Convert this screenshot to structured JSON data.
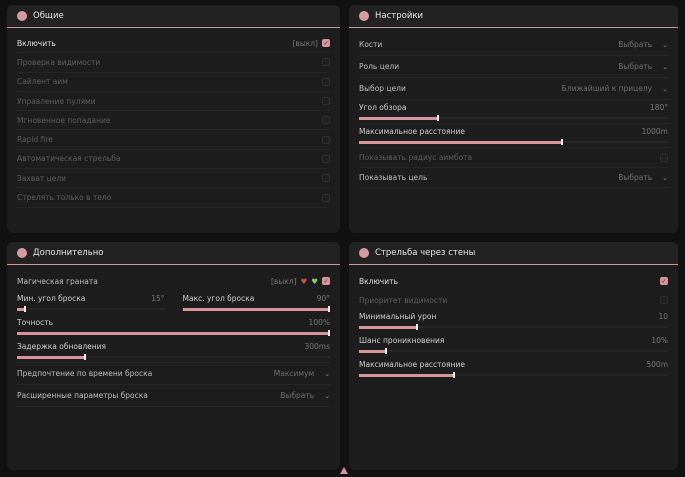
{
  "accent": "#d7959b",
  "general": {
    "title": "Общие",
    "icon": "user-group-icon",
    "items": [
      {
        "label": "Включить",
        "state_text": "[выкл]",
        "checked": true,
        "disabled": false
      },
      {
        "label": "Проверка видимости",
        "checked": false,
        "disabled": true
      },
      {
        "label": "Сайлент аим",
        "checked": false,
        "disabled": true
      },
      {
        "label": "Управление пулями",
        "checked": false,
        "disabled": true
      },
      {
        "label": "Мгновенное попадание",
        "checked": false,
        "disabled": true
      },
      {
        "label": "Rapid fire",
        "checked": false,
        "disabled": true
      },
      {
        "label": "Автоматическая стрельба",
        "checked": false,
        "disabled": true
      },
      {
        "label": "Захват цели",
        "checked": false,
        "disabled": true
      },
      {
        "label": "Стрелять только в тело",
        "checked": false,
        "disabled": true
      }
    ]
  },
  "settings": {
    "title": "Настройки",
    "icon": "flower-icon",
    "bones": {
      "label": "Кости",
      "value": "Выбрать"
    },
    "target_role": {
      "label": "Роль цели",
      "value": "Выбрать"
    },
    "target_select": {
      "label": "Выбор цели",
      "value": "Ближайший к прицелу"
    },
    "fov": {
      "label": "Угол обзора",
      "value": "180°",
      "fill_percent": 26
    },
    "max_dist": {
      "label": "Максимальное расстояние",
      "value": "1000m",
      "fill_percent": 66
    },
    "show_radius": {
      "label": "Показывать радиус аимбота",
      "checked": false,
      "disabled": true
    },
    "show_target": {
      "label": "Показывать цель",
      "value": "Выбрать"
    }
  },
  "advanced": {
    "title": "Дополнительно",
    "icon": "user-group-icon",
    "magic": {
      "label": "Магическая граната",
      "state_text": "[выкл]",
      "checked": true
    },
    "min_angle": {
      "label": "Мин. угол броска",
      "value": "15°",
      "fill_percent": 6
    },
    "max_angle": {
      "label": "Макс. угол броска",
      "value": "90°",
      "fill_percent": 100
    },
    "accuracy": {
      "label": "Точность",
      "value": "100%",
      "fill_percent": 100
    },
    "delay": {
      "label": "Задержка обновления",
      "value": "300ms",
      "fill_percent": 22
    },
    "pref": {
      "label": "Предпочтение по времени броска",
      "value": "Максимум"
    },
    "ext": {
      "label": "Расширенные параметры броска",
      "value": "Выбрать"
    }
  },
  "wallbang": {
    "title": "Стрельба через стены",
    "icon": "flower-icon",
    "enable": {
      "label": "Включить",
      "checked": true
    },
    "priority": {
      "label": "Приоритет видимости",
      "checked": false,
      "disabled": true
    },
    "min_dmg": {
      "label": "Минимальный урон",
      "value": "10",
      "fill_percent": 19
    },
    "pen": {
      "label": "Шанс проникновения",
      "value": "10%",
      "fill_percent": 9
    },
    "max_dist": {
      "label": "Максимальное расстояние",
      "value": "500m",
      "fill_percent": 31
    }
  }
}
